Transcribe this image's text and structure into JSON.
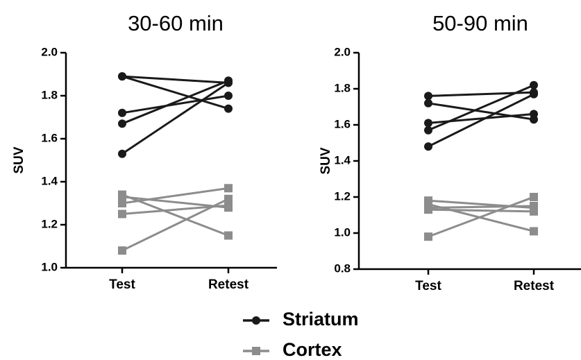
{
  "groups": [
    {
      "name": "Striatum",
      "color": "#1a1a1a",
      "marker": "circle"
    },
    {
      "name": "Cortex",
      "color": "#8c8c8c",
      "marker": "square"
    }
  ],
  "chart_data": [
    {
      "type": "line",
      "title": "30-60 min",
      "y_label": "SUV",
      "categories": [
        "Test",
        "Retest"
      ],
      "ylim": [
        1.0,
        2.0
      ],
      "yticks": [
        {
          "value": 1.0,
          "label": "1.0"
        },
        {
          "value": 1.2,
          "label": "1.2"
        },
        {
          "value": 1.4,
          "label": "1.4"
        },
        {
          "value": 1.6,
          "label": "1.6"
        },
        {
          "value": 1.8,
          "label": "1.8"
        },
        {
          "value": 2.0,
          "label": "2.0"
        }
      ],
      "series": [
        {
          "values": [
            [
              1.89,
              1.86
            ],
            [
              1.89,
              1.74
            ],
            [
              1.72,
              1.8
            ],
            [
              1.67,
              1.87
            ],
            [
              1.53,
              1.86
            ]
          ]
        },
        {
          "values": [
            [
              1.34,
              1.15
            ],
            [
              1.08,
              1.32
            ],
            [
              1.25,
              1.29
            ],
            [
              1.3,
              1.37
            ],
            [
              1.33,
              1.28
            ]
          ]
        }
      ]
    },
    {
      "type": "line",
      "title": "50-90 min",
      "y_label": "SUV",
      "categories": [
        "Test",
        "Retest"
      ],
      "ylim": [
        0.8,
        2.0
      ],
      "yticks": [
        {
          "value": 0.8,
          "label": "0.8"
        },
        {
          "value": 1.0,
          "label": "1.0"
        },
        {
          "value": 1.2,
          "label": "1.2"
        },
        {
          "value": 1.4,
          "label": "1.4"
        },
        {
          "value": 1.6,
          "label": "1.6"
        },
        {
          "value": 1.8,
          "label": "1.8"
        },
        {
          "value": 2.0,
          "label": "2.0"
        }
      ],
      "series": [
        {
          "values": [
            [
              1.76,
              1.78
            ],
            [
              1.72,
              1.63
            ],
            [
              1.61,
              1.66
            ],
            [
              1.57,
              1.82
            ],
            [
              1.48,
              1.77
            ]
          ]
        },
        {
          "values": [
            [
              1.18,
              1.14
            ],
            [
              1.16,
              1.01
            ],
            [
              1.14,
              1.15
            ],
            [
              1.13,
              1.12
            ],
            [
              0.98,
              1.2
            ]
          ]
        }
      ]
    }
  ]
}
